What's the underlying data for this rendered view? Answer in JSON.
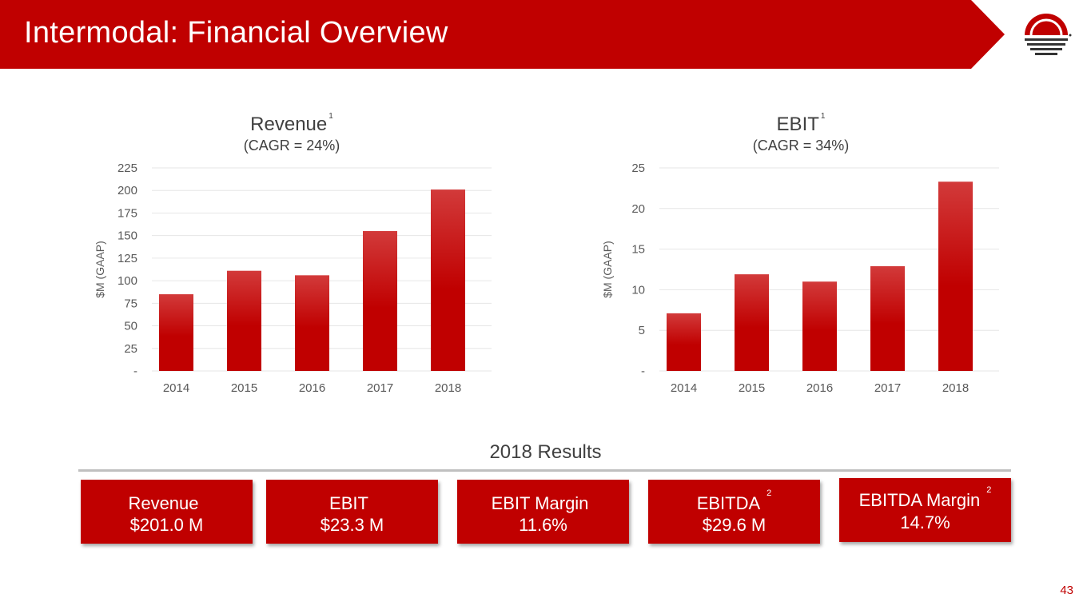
{
  "header": {
    "title": "Intermodal: Financial Overview"
  },
  "colors": {
    "brand_red": "#c00000",
    "bar_top": "#d23a3a",
    "bar_bottom": "#c00000",
    "grid": "#e6e6e6",
    "text": "#404040"
  },
  "charts": {
    "revenue": {
      "title": "Revenue",
      "superscript": "1",
      "subtitle": "(CAGR = 24%)"
    },
    "ebit": {
      "title": "EBIT",
      "superscript": "1",
      "subtitle": "(CAGR = 34%)"
    }
  },
  "chart_data": [
    {
      "type": "bar",
      "title": "Revenue",
      "subtitle": "(CAGR = 24%)",
      "categories": [
        "2014",
        "2015",
        "2016",
        "2017",
        "2018"
      ],
      "values": [
        85,
        111,
        106,
        155,
        201
      ],
      "ylabel": "$M (GAAP)",
      "ylim": [
        0,
        225
      ],
      "yticks": [
        0,
        25,
        50,
        75,
        100,
        125,
        150,
        175,
        200,
        225
      ],
      "yticklabels": [
        "-",
        "25",
        "50",
        "75",
        "100",
        "125",
        "150",
        "175",
        "200",
        "225"
      ],
      "grid": true
    },
    {
      "type": "bar",
      "title": "EBIT",
      "subtitle": "(CAGR = 34%)",
      "categories": [
        "2014",
        "2015",
        "2016",
        "2017",
        "2018"
      ],
      "values": [
        7.1,
        11.9,
        11.0,
        12.9,
        23.3
      ],
      "ylabel": "$M (GAAP)",
      "ylim": [
        0,
        25
      ],
      "yticks": [
        0,
        5,
        10,
        15,
        20,
        25
      ],
      "yticklabels": [
        "-",
        "5",
        "10",
        "15",
        "20",
        "25"
      ],
      "grid": true
    }
  ],
  "results": {
    "title": "2018 Results",
    "items": [
      {
        "label": "Revenue",
        "value": "$201.0 M",
        "superscript": ""
      },
      {
        "label": "EBIT",
        "value": "$23.3 M",
        "superscript": ""
      },
      {
        "label": "EBIT Margin",
        "value": "11.6%",
        "superscript": ""
      },
      {
        "label": "EBITDA",
        "value": "$29.6 M",
        "superscript": "2"
      },
      {
        "label": "EBITDA Margin",
        "value": "14.7%",
        "superscript": "2"
      }
    ]
  },
  "page_number": "43"
}
